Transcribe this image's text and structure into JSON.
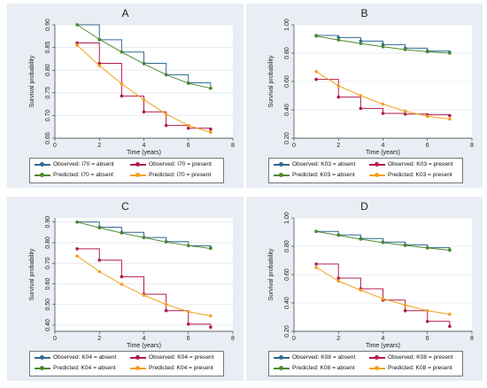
{
  "colors": {
    "observed_absent": "#2f6a8f",
    "predicted_absent": "#4e8a2e",
    "observed_present": "#b31b4b",
    "predicted_present": "#f2a020"
  },
  "chart_data": [
    {
      "type": "line",
      "title": "A",
      "xlabel": "Time (years)",
      "ylabel": "Survival probability",
      "xlim": [
        0,
        8
      ],
      "ylim": [
        0.65,
        0.9
      ],
      "xticks": [
        "0",
        "2",
        "4",
        "6",
        "8"
      ],
      "yticks": [
        "0.65",
        "0.70",
        "0.75",
        "0.80",
        "0.85",
        "0.90"
      ],
      "yticks_values": [
        0.65,
        0.7,
        0.75,
        0.8,
        0.85,
        0.9
      ],
      "legend": [
        "Observed: I70 = absent",
        "Observed: I70 = present",
        "Predicted: I70 = absent",
        "Predicted: I70 = present"
      ],
      "series": [
        {
          "name": "Observed: I70 = absent",
          "style": "step",
          "x": [
            1,
            2,
            3,
            4,
            5,
            6,
            7
          ],
          "values": [
            0.9,
            0.867,
            0.84,
            0.815,
            0.79,
            0.772,
            0.76
          ]
        },
        {
          "name": "Predicted: I70 = absent",
          "style": "line",
          "x": [
            1,
            2,
            3,
            4,
            5,
            6,
            7
          ],
          "values": [
            0.9,
            0.868,
            0.84,
            0.814,
            0.79,
            0.771,
            0.76
          ]
        },
        {
          "name": "Observed: I70 = present",
          "style": "step",
          "x": [
            1,
            2,
            3,
            4,
            5,
            6,
            7
          ],
          "values": [
            0.86,
            0.815,
            0.743,
            0.708,
            0.678,
            0.672,
            0.67
          ]
        },
        {
          "name": "Predicted: I70 = present",
          "style": "line",
          "x": [
            1,
            2,
            3,
            4,
            5,
            6,
            7
          ],
          "values": [
            0.855,
            0.81,
            0.77,
            0.735,
            0.703,
            0.678,
            0.663
          ]
        }
      ]
    },
    {
      "type": "line",
      "title": "B",
      "xlabel": "Time (years)",
      "ylabel": "Survival probability",
      "xlim": [
        0,
        8
      ],
      "ylim": [
        0.2,
        1.0
      ],
      "xticks": [
        "0",
        "2",
        "4",
        "6",
        "8"
      ],
      "yticks": [
        "0.20",
        "0.40",
        "0.60",
        "0.80",
        "1.00"
      ],
      "yticks_values": [
        0.2,
        0.4,
        0.6,
        0.8,
        1.0
      ],
      "legend": [
        "Observed: K03 = absent",
        "Observed: K03 = present",
        "Predicted: K03 = absent",
        "Predicted: K03 = present"
      ],
      "series": [
        {
          "name": "Observed: K03 = absent",
          "style": "step",
          "x": [
            1,
            2,
            3,
            4,
            5,
            6,
            7
          ],
          "values": [
            0.925,
            0.91,
            0.885,
            0.86,
            0.835,
            0.815,
            0.805
          ]
        },
        {
          "name": "Predicted: K03 = absent",
          "style": "line",
          "x": [
            1,
            2,
            3,
            4,
            5,
            6,
            7
          ],
          "values": [
            0.92,
            0.893,
            0.868,
            0.845,
            0.825,
            0.81,
            0.8
          ]
        },
        {
          "name": "Observed: K03 = present",
          "style": "step",
          "x": [
            1,
            2,
            3,
            4,
            5,
            6,
            7
          ],
          "values": [
            0.615,
            0.49,
            0.41,
            0.375,
            0.37,
            0.365,
            0.36
          ]
        },
        {
          "name": "Predicted: K03 = present",
          "style": "line",
          "x": [
            1,
            2,
            3,
            4,
            5,
            6,
            7
          ],
          "values": [
            0.67,
            0.57,
            0.5,
            0.44,
            0.39,
            0.355,
            0.335
          ]
        }
      ]
    },
    {
      "type": "line",
      "title": "C",
      "xlabel": "Time (years)",
      "ylabel": "Survival probability",
      "xlim": [
        0,
        8
      ],
      "ylim": [
        0.37,
        0.92
      ],
      "xticks": [
        "0",
        "2",
        "4",
        "6",
        "8"
      ],
      "yticks": [
        "0.40",
        "0.50",
        "0.60",
        "0.70",
        "0.80",
        "0.90"
      ],
      "yticks_values": [
        0.4,
        0.5,
        0.6,
        0.7,
        0.8,
        0.9
      ],
      "legend": [
        "Observed: K04 = absent",
        "Observed: K04 = present",
        "Predicted: K04 = absent",
        "Predicted: K04 = present"
      ],
      "series": [
        {
          "name": "Observed: K04 = absent",
          "style": "step",
          "x": [
            1,
            2,
            3,
            4,
            5,
            6,
            7
          ],
          "values": [
            0.9,
            0.875,
            0.85,
            0.825,
            0.805,
            0.785,
            0.775
          ]
        },
        {
          "name": "Predicted: K04 = absent",
          "style": "line",
          "x": [
            1,
            2,
            3,
            4,
            5,
            6,
            7
          ],
          "values": [
            0.9,
            0.872,
            0.847,
            0.825,
            0.803,
            0.786,
            0.772
          ]
        },
        {
          "name": "Observed: K04 = present",
          "style": "step",
          "x": [
            1,
            2,
            3,
            4,
            5,
            6,
            7
          ],
          "values": [
            0.77,
            0.715,
            0.635,
            0.55,
            0.47,
            0.405,
            0.39
          ]
        },
        {
          "name": "Predicted: K04 = present",
          "style": "line",
          "x": [
            1,
            2,
            3,
            4,
            5,
            6,
            7
          ],
          "values": [
            0.735,
            0.66,
            0.598,
            0.545,
            0.5,
            0.465,
            0.445
          ]
        }
      ]
    },
    {
      "type": "line",
      "title": "D",
      "xlabel": "Time (years)",
      "ylabel": "Survival probability",
      "xlim": [
        0,
        8
      ],
      "ylim": [
        0.2,
        1.0
      ],
      "xticks": [
        "0",
        "2",
        "4",
        "6",
        "8"
      ],
      "yticks": [
        "0.20",
        "0.40",
        "0.60",
        "0.80",
        "1.00"
      ],
      "yticks_values": [
        0.2,
        0.4,
        0.6,
        0.8,
        1.0
      ],
      "legend": [
        "Observed: K08 = absent",
        "Observed: K08 = present",
        "Predicted: K08 = absent",
        "Predicted: K08 = present"
      ],
      "series": [
        {
          "name": "Observed: K08 = absent",
          "style": "step",
          "x": [
            1,
            2,
            3,
            4,
            5,
            6,
            7
          ],
          "values": [
            0.905,
            0.88,
            0.855,
            0.83,
            0.81,
            0.79,
            0.775
          ]
        },
        {
          "name": "Predicted: K08 = absent",
          "style": "line",
          "x": [
            1,
            2,
            3,
            4,
            5,
            6,
            7
          ],
          "values": [
            0.905,
            0.877,
            0.85,
            0.826,
            0.806,
            0.788,
            0.772
          ]
        },
        {
          "name": "Observed: K08 = present",
          "style": "step",
          "x": [
            1,
            2,
            3,
            4,
            5,
            6,
            7
          ],
          "values": [
            0.675,
            0.575,
            0.5,
            0.42,
            0.345,
            0.27,
            0.235
          ]
        },
        {
          "name": "Predicted: K08 = present",
          "style": "line",
          "x": [
            1,
            2,
            3,
            4,
            5,
            6,
            7
          ],
          "values": [
            0.65,
            0.555,
            0.49,
            0.43,
            0.385,
            0.345,
            0.32
          ]
        }
      ]
    }
  ]
}
